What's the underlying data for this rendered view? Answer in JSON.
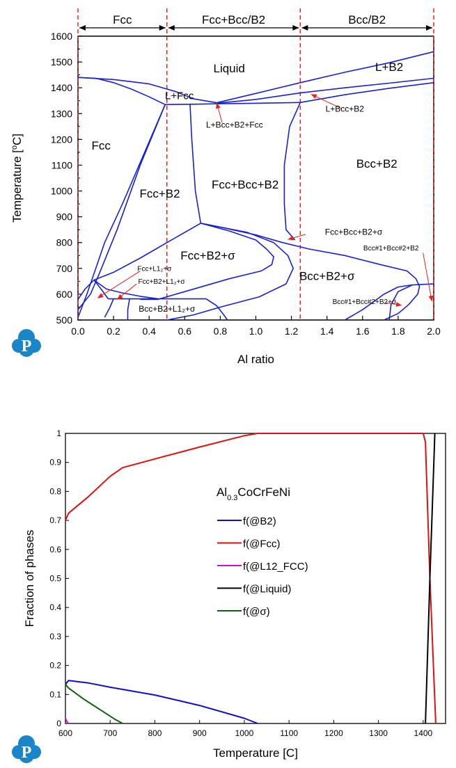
{
  "chart_data": [
    {
      "type": "phase-diagram",
      "xlabel": "Al ratio",
      "ylabel": "Temperature [°C]",
      "ylabel_parts": {
        "pre": "Temperature [",
        "sup": "o",
        "post": "C]"
      },
      "xlim": [
        0,
        2.0
      ],
      "ylim": [
        500,
        1600
      ],
      "xticks": [
        "0.0",
        "0.2",
        "0.4",
        "0.6",
        "0.8",
        "1.0",
        "1.2",
        "1.4",
        "1.6",
        "1.8",
        "2.0"
      ],
      "yticks": [
        "500",
        "600",
        "700",
        "800",
        "900",
        "1000",
        "1100",
        "1200",
        "1300",
        "1400",
        "1500",
        "1600"
      ],
      "regions_top": [
        {
          "label": "Fcc",
          "from": 0,
          "to": 0.5
        },
        {
          "label": "Fcc+Bcc/B2",
          "from": 0.5,
          "to": 1.25
        },
        {
          "label": "Bcc/B2",
          "from": 1.25,
          "to": 2.0
        }
      ],
      "dashed_x": [
        0.0,
        0.5,
        1.25,
        2.0
      ],
      "phase_labels": [
        {
          "text": "Liquid",
          "x": 0.85,
          "y": 1460,
          "size": "large"
        },
        {
          "text": "L+B2",
          "x": 1.75,
          "y": 1465,
          "size": "large"
        },
        {
          "text": "L+Fcc",
          "x": 0.57,
          "y": 1356,
          "size": "mid"
        },
        {
          "text": "L+Bcc+B2",
          "x": 1.5,
          "y": 1308,
          "size": "small"
        },
        {
          "text": "L+Bcc+B2+Fcc",
          "x": 0.88,
          "y": 1245,
          "size": "small"
        },
        {
          "text": "Fcc",
          "x": 0.13,
          "y": 1160,
          "size": "large"
        },
        {
          "text": "Bcc+B2",
          "x": 1.68,
          "y": 1090,
          "size": "large"
        },
        {
          "text": "Fcc+Bcc+B2",
          "x": 0.94,
          "y": 1010,
          "size": "large"
        },
        {
          "text": "Fcc+B2",
          "x": 0.46,
          "y": 975,
          "size": "large"
        },
        {
          "text": "Fcc+Bcc+B2+σ",
          "x": 1.55,
          "y": 830,
          "size": "small"
        },
        {
          "text": "Fcc+B2+σ",
          "x": 0.73,
          "y": 735,
          "size": "large"
        },
        {
          "text": "Bcc#1+Bcc#2+B2",
          "x": 1.76,
          "y": 770,
          "size": "tiny"
        },
        {
          "text": "Fcc+L1₂+σ",
          "x": 0.43,
          "y": 690,
          "size": "tiny"
        },
        {
          "text": "Fcc+B2+L1₂+σ",
          "x": 0.47,
          "y": 640,
          "size": "tiny"
        },
        {
          "text": "Bcc+B2+σ",
          "x": 1.4,
          "y": 655,
          "size": "large"
        },
        {
          "text": "Bcc#1+Bcc#2+B2+σ",
          "x": 1.61,
          "y": 562,
          "size": "tiny"
        },
        {
          "text": "Bcc+B2+L1₂+σ",
          "x": 0.5,
          "y": 532,
          "size": "small"
        }
      ],
      "boundaries": [
        [
          [
            0.0,
            1440
          ],
          [
            0.1,
            1437
          ],
          [
            0.2,
            1420
          ],
          [
            0.3,
            1395
          ],
          [
            0.4,
            1365
          ],
          [
            0.49,
            1335
          ]
        ],
        [
          [
            0.49,
            1335
          ],
          [
            0.62,
            1336
          ],
          [
            0.78,
            1338
          ],
          [
            1.0,
            1340
          ],
          [
            1.25,
            1343
          ]
        ],
        [
          [
            0.78,
            1342
          ],
          [
            1.0,
            1378
          ],
          [
            1.25,
            1420
          ],
          [
            1.5,
            1460
          ],
          [
            1.75,
            1497
          ],
          [
            2.0,
            1540
          ]
        ],
        [
          [
            0.0,
            1440
          ],
          [
            0.2,
            1432
          ],
          [
            0.4,
            1415
          ],
          [
            0.55,
            1385
          ],
          [
            0.65,
            1357
          ],
          [
            0.78,
            1342
          ]
        ],
        [
          [
            0.78,
            1340
          ],
          [
            1.0,
            1355
          ],
          [
            1.25,
            1380
          ],
          [
            1.5,
            1400
          ],
          [
            1.75,
            1418
          ],
          [
            2.0,
            1437
          ]
        ],
        [
          [
            1.25,
            1343
          ],
          [
            1.5,
            1373
          ],
          [
            1.75,
            1398
          ],
          [
            2.0,
            1420
          ]
        ],
        [
          [
            0.49,
            1335
          ],
          [
            0.35,
            1100
          ],
          [
            0.22,
            850
          ],
          [
            0.12,
            680
          ],
          [
            0.07,
            600
          ],
          [
            0.0,
            540
          ]
        ],
        [
          [
            0.49,
            1335
          ],
          [
            0.25,
            950
          ],
          [
            0.15,
            800
          ],
          [
            0.1,
            700
          ],
          [
            0.05,
            600
          ],
          [
            0.0,
            510
          ]
        ],
        [
          [
            0.63,
            1335
          ],
          [
            0.64,
            1200
          ],
          [
            0.66,
            1000
          ],
          [
            0.69,
            875
          ]
        ],
        [
          [
            1.25,
            1343
          ],
          [
            1.19,
            1250
          ],
          [
            1.16,
            1100
          ],
          [
            1.16,
            950
          ],
          [
            1.17,
            850
          ],
          [
            1.22,
            810
          ]
        ],
        [
          [
            0.69,
            875
          ],
          [
            0.8,
            860
          ],
          [
            1.0,
            830
          ],
          [
            1.15,
            800
          ],
          [
            1.3,
            775
          ],
          [
            1.5,
            750
          ],
          [
            1.7,
            715
          ],
          [
            1.85,
            690
          ],
          [
            1.9,
            660
          ],
          [
            1.92,
            630
          ],
          [
            1.91,
            600
          ],
          [
            1.86,
            560
          ],
          [
            1.8,
            525
          ],
          [
            1.72,
            500
          ]
        ],
        [
          [
            0.69,
            875
          ],
          [
            0.5,
            800
          ],
          [
            0.35,
            740
          ],
          [
            0.2,
            685
          ],
          [
            0.09,
            655
          ]
        ],
        [
          [
            0.69,
            875
          ],
          [
            0.85,
            845
          ],
          [
            1.0,
            810
          ],
          [
            1.06,
            775
          ],
          [
            1.1,
            745
          ],
          [
            1.09,
            715
          ],
          [
            1.03,
            690
          ],
          [
            0.85,
            660
          ],
          [
            0.7,
            630
          ],
          [
            0.45,
            580
          ],
          [
            0.35,
            580
          ]
        ],
        [
          [
            0.69,
            875
          ],
          [
            0.95,
            840
          ],
          [
            1.1,
            800
          ],
          [
            1.18,
            750
          ],
          [
            1.21,
            700
          ],
          [
            1.17,
            640
          ],
          [
            1.02,
            590
          ],
          [
            0.8,
            550
          ],
          [
            0.65,
            520
          ],
          [
            0.5,
            500
          ]
        ],
        [
          [
            0.09,
            655
          ],
          [
            0.16,
            620
          ],
          [
            0.25,
            605
          ],
          [
            0.35,
            592
          ],
          [
            0.45,
            582
          ]
        ],
        [
          [
            0.09,
            655
          ],
          [
            0.13,
            620
          ],
          [
            0.17,
            582
          ]
        ],
        [
          [
            0.17,
            582
          ],
          [
            0.3,
            582
          ],
          [
            0.45,
            582
          ],
          [
            0.6,
            582
          ],
          [
            0.72,
            582
          ]
        ],
        [
          [
            0.72,
            582
          ],
          [
            0.78,
            555
          ],
          [
            0.82,
            520
          ],
          [
            0.84,
            500
          ]
        ],
        [
          [
            0.2,
            582
          ],
          [
            0.18,
            550
          ],
          [
            0.15,
            510
          ]
        ],
        [
          [
            0.29,
            582
          ],
          [
            0.28,
            540
          ],
          [
            0.28,
            500
          ]
        ],
        [
          [
            1.5,
            500
          ],
          [
            1.6,
            540
          ],
          [
            1.72,
            600
          ],
          [
            1.8,
            628
          ],
          [
            1.88,
            636
          ],
          [
            2.0,
            640
          ]
        ],
        [
          [
            1.88,
            636
          ],
          [
            1.8,
            610
          ],
          [
            1.76,
            560
          ],
          [
            1.75,
            500
          ]
        ],
        [
          [
            0.09,
            655
          ],
          [
            0.04,
            620
          ],
          [
            0.0,
            580
          ]
        ]
      ],
      "arrows": [
        {
          "from": [
            0.81,
            1265
          ],
          "to": [
            0.78,
            1342
          ]
        },
        {
          "from": [
            1.48,
            1320
          ],
          "to": [
            1.31,
            1375
          ]
        },
        {
          "from": [
            1.28,
            832
          ],
          "to": [
            1.18,
            812
          ]
        },
        {
          "from": [
            1.94,
            760
          ],
          "to": [
            1.99,
            572
          ]
        },
        {
          "from": [
            0.35,
            690
          ],
          "to": [
            0.11,
            585
          ]
        },
        {
          "from": [
            0.33,
            640
          ],
          "to": [
            0.22,
            580
          ]
        },
        {
          "from": [
            1.73,
            567
          ],
          "to": [
            1.82,
            557
          ]
        }
      ]
    },
    {
      "type": "line",
      "title": "Al₀.₃CoCrFeNi",
      "title_parts": {
        "pre": "Al",
        "sub": "0.3",
        "post": "CoCrFeNi"
      },
      "xlabel": "Temperature [C]",
      "ylabel": "Fraction of phases",
      "xlim": [
        600,
        1450
      ],
      "ylim": [
        0,
        1
      ],
      "xticks": [
        "600",
        "700",
        "800",
        "900",
        "1000",
        "1100",
        "1200",
        "1300",
        "1400"
      ],
      "yticks": [
        "0",
        "0.1",
        "0.2",
        "0.3",
        "0.4",
        "0.5",
        "0.6",
        "0.7",
        "0.8",
        "0.9",
        "1"
      ],
      "legend_position": "center-left",
      "series": [
        {
          "name": "f(@B2)",
          "color": "#1010c8",
          "points": [
            [
              600,
              0.135
            ],
            [
              607,
              0.148
            ],
            [
              650,
              0.14
            ],
            [
              700,
              0.125
            ],
            [
              800,
              0.098
            ],
            [
              900,
              0.062
            ],
            [
              1000,
              0.018
            ],
            [
              1030,
              0
            ]
          ]
        },
        {
          "name": "f(@Fcc)",
          "color": "#e01010",
          "points": [
            [
              600,
              0.7
            ],
            [
              607,
              0.725
            ],
            [
              650,
              0.78
            ],
            [
              700,
              0.852
            ],
            [
              728,
              0.882
            ],
            [
              800,
              0.912
            ],
            [
              900,
              0.953
            ],
            [
              1000,
              0.992
            ],
            [
              1030,
              1.0
            ],
            [
              1400,
              1.0
            ],
            [
              1405,
              0.97
            ],
            [
              1415,
              0.5
            ],
            [
              1428,
              0
            ]
          ]
        },
        {
          "name": "f(@L12_FCC)",
          "color": "#d010d0",
          "points": [
            [
              600,
              0.018
            ],
            [
              603,
              0.008
            ],
            [
              606,
              0
            ]
          ]
        },
        {
          "name": "f(@Liquid)",
          "color": "#000000",
          "points": [
            [
              1405,
              0
            ],
            [
              1415,
              0.5
            ],
            [
              1426,
              1.0
            ]
          ]
        },
        {
          "name": "f(@σ)",
          "color": "#106010",
          "points": [
            [
              600,
              0.135
            ],
            [
              607,
              0.122
            ],
            [
              640,
              0.085
            ],
            [
              680,
              0.045
            ],
            [
              710,
              0.015
            ],
            [
              728,
              0
            ]
          ]
        }
      ]
    }
  ]
}
